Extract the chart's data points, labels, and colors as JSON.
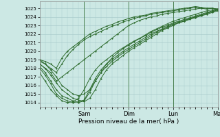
{
  "xlabel": "Pression niveau de la mer( hPa )",
  "bg_color": "#cce8e4",
  "grid_color": "#aacccc",
  "line_color": "#2d6b2d",
  "ylim": [
    1013.5,
    1025.8
  ],
  "xlim": [
    0,
    96
  ],
  "yticks": [
    1014,
    1015,
    1016,
    1017,
    1018,
    1019,
    1020,
    1021,
    1022,
    1023,
    1024,
    1025
  ],
  "xtick_labels": [
    "Sam",
    "Dim",
    "Lun",
    "Mar"
  ],
  "xtick_positions": [
    24,
    48,
    72,
    96
  ],
  "vline_positions": [
    24,
    48,
    72,
    96
  ],
  "marker": "D",
  "markersize": 1.2,
  "linewidth": 0.7,
  "curves": [
    {
      "x": [
        0,
        3,
        6,
        9,
        12,
        15,
        18,
        21,
        24,
        27,
        30,
        33,
        36,
        39,
        42,
        45,
        48,
        51,
        54,
        57,
        60,
        63,
        66,
        69,
        72,
        75,
        78,
        81,
        84,
        87,
        90,
        93,
        96
      ],
      "y": [
        1019.0,
        1018.8,
        1018.5,
        1018.0,
        1019.2,
        1020.0,
        1020.5,
        1021.0,
        1021.5,
        1022.0,
        1022.3,
        1022.6,
        1022.9,
        1023.1,
        1023.4,
        1023.6,
        1023.8,
        1024.0,
        1024.1,
        1024.2,
        1024.4,
        1024.5,
        1024.6,
        1024.7,
        1024.8,
        1024.9,
        1025.0,
        1025.1,
        1025.2,
        1025.1,
        1025.0,
        1025.0,
        1024.9
      ]
    },
    {
      "x": [
        0,
        3,
        6,
        9,
        12,
        15,
        18,
        21,
        24,
        27,
        30,
        33,
        36,
        39,
        42,
        45,
        48,
        51,
        54,
        57,
        60,
        63,
        66,
        69,
        72,
        75,
        78,
        81,
        84,
        87,
        90,
        93,
        96
      ],
      "y": [
        1018.8,
        1018.5,
        1018.0,
        1017.5,
        1018.5,
        1019.5,
        1020.2,
        1020.8,
        1021.3,
        1021.7,
        1022.0,
        1022.3,
        1022.6,
        1022.9,
        1023.1,
        1023.4,
        1023.6,
        1023.8,
        1024.0,
        1024.1,
        1024.3,
        1024.4,
        1024.5,
        1024.6,
        1024.7,
        1024.8,
        1024.9,
        1025.0,
        1025.1,
        1025.0,
        1024.9,
        1025.0,
        1024.8
      ]
    },
    {
      "x": [
        0,
        3,
        6,
        9,
        12,
        15,
        18,
        21,
        24,
        27,
        30,
        33,
        36,
        39,
        42,
        45,
        48,
        51,
        54,
        57,
        60,
        63,
        66,
        69,
        72,
        75,
        78,
        81,
        84,
        87,
        90,
        93,
        96
      ],
      "y": [
        1018.5,
        1018.0,
        1017.5,
        1016.5,
        1017.0,
        1017.5,
        1018.0,
        1018.5,
        1019.0,
        1019.5,
        1020.0,
        1020.5,
        1021.0,
        1021.5,
        1022.0,
        1022.5,
        1023.0,
        1023.3,
        1023.6,
        1023.8,
        1024.0,
        1024.1,
        1024.3,
        1024.4,
        1024.5,
        1024.6,
        1024.7,
        1024.8,
        1024.9,
        1025.0,
        1025.0,
        1025.0,
        1024.9
      ]
    },
    {
      "x": [
        0,
        3,
        6,
        9,
        12,
        15,
        18,
        21,
        24,
        27,
        30,
        33,
        36,
        39,
        42,
        45,
        48,
        51,
        54,
        57,
        60,
        63,
        66,
        69,
        72,
        75,
        78,
        81,
        84,
        87,
        90,
        93,
        96
      ],
      "y": [
        1019.0,
        1018.5,
        1017.8,
        1017.0,
        1016.0,
        1015.5,
        1015.0,
        1014.8,
        1015.0,
        1015.5,
        1016.5,
        1017.5,
        1018.5,
        1019.2,
        1019.8,
        1020.3,
        1020.7,
        1021.1,
        1021.5,
        1021.9,
        1022.3,
        1022.6,
        1022.9,
        1023.2,
        1023.5,
        1023.7,
        1023.9,
        1024.1,
        1024.3,
        1024.5,
        1024.7,
        1024.8,
        1024.9
      ]
    },
    {
      "x": [
        0,
        3,
        6,
        9,
        12,
        15,
        18,
        21,
        24,
        27,
        30,
        33,
        36,
        39,
        42,
        45,
        48,
        51,
        54,
        57,
        60,
        63,
        66,
        69,
        72,
        75,
        78,
        81,
        84,
        87,
        90,
        93,
        96
      ],
      "y": [
        1018.5,
        1018.0,
        1017.2,
        1016.3,
        1015.5,
        1015.0,
        1014.5,
        1014.3,
        1014.1,
        1014.5,
        1015.5,
        1016.8,
        1017.8,
        1018.5,
        1019.0,
        1019.5,
        1020.0,
        1020.4,
        1020.8,
        1021.2,
        1021.6,
        1022.0,
        1022.4,
        1022.7,
        1023.0,
        1023.3,
        1023.5,
        1023.7,
        1023.9,
        1024.1,
        1024.3,
        1024.5,
        1024.7
      ]
    },
    {
      "x": [
        0,
        3,
        6,
        9,
        12,
        15,
        18,
        21,
        24,
        27,
        30,
        33,
        36,
        39,
        42,
        45,
        48,
        51,
        54,
        57,
        60,
        63,
        66,
        69,
        72,
        75,
        78,
        81,
        84,
        87,
        90,
        93,
        96
      ],
      "y": [
        1018.2,
        1017.5,
        1016.5,
        1015.5,
        1014.8,
        1014.5,
        1014.2,
        1014.0,
        1014.2,
        1015.2,
        1016.5,
        1017.5,
        1018.2,
        1018.8,
        1019.3,
        1019.8,
        1020.2,
        1020.6,
        1021.0,
        1021.4,
        1021.8,
        1022.2,
        1022.5,
        1022.8,
        1023.1,
        1023.3,
        1023.5,
        1023.8,
        1024.0,
        1024.2,
        1024.4,
        1024.6,
        1024.8
      ]
    },
    {
      "x": [
        0,
        3,
        6,
        9,
        12,
        15,
        18,
        21,
        24,
        27,
        30,
        33,
        36,
        39,
        42,
        45,
        48,
        51,
        54,
        57,
        60,
        63,
        66,
        69,
        72,
        75,
        78,
        81,
        84,
        87,
        90,
        93,
        96
      ],
      "y": [
        1018.0,
        1017.2,
        1016.2,
        1015.0,
        1014.5,
        1014.2,
        1014.0,
        1014.1,
        1014.3,
        1015.5,
        1016.8,
        1017.8,
        1018.5,
        1019.0,
        1019.5,
        1020.0,
        1020.4,
        1020.8,
        1021.2,
        1021.6,
        1022.0,
        1022.3,
        1022.6,
        1022.9,
        1023.2,
        1023.4,
        1023.6,
        1023.8,
        1024.0,
        1024.2,
        1024.4,
        1024.6,
        1024.8
      ]
    },
    {
      "x": [
        0,
        3,
        6,
        9,
        12,
        15,
        18,
        21,
        24,
        27,
        30,
        33,
        36,
        39,
        42,
        45,
        48,
        51,
        54,
        57,
        60,
        63,
        66,
        69,
        72,
        75,
        78,
        81,
        84,
        87,
        90,
        93,
        96
      ],
      "y": [
        1017.5,
        1016.5,
        1015.5,
        1014.8,
        1014.2,
        1014.0,
        1014.1,
        1014.5,
        1015.5,
        1016.8,
        1017.8,
        1018.5,
        1019.0,
        1019.5,
        1020.0,
        1020.4,
        1020.8,
        1021.2,
        1021.5,
        1021.8,
        1022.2,
        1022.5,
        1022.8,
        1023.0,
        1023.3,
        1023.5,
        1023.7,
        1023.9,
        1024.1,
        1024.3,
        1024.5,
        1024.7,
        1024.9
      ]
    }
  ]
}
